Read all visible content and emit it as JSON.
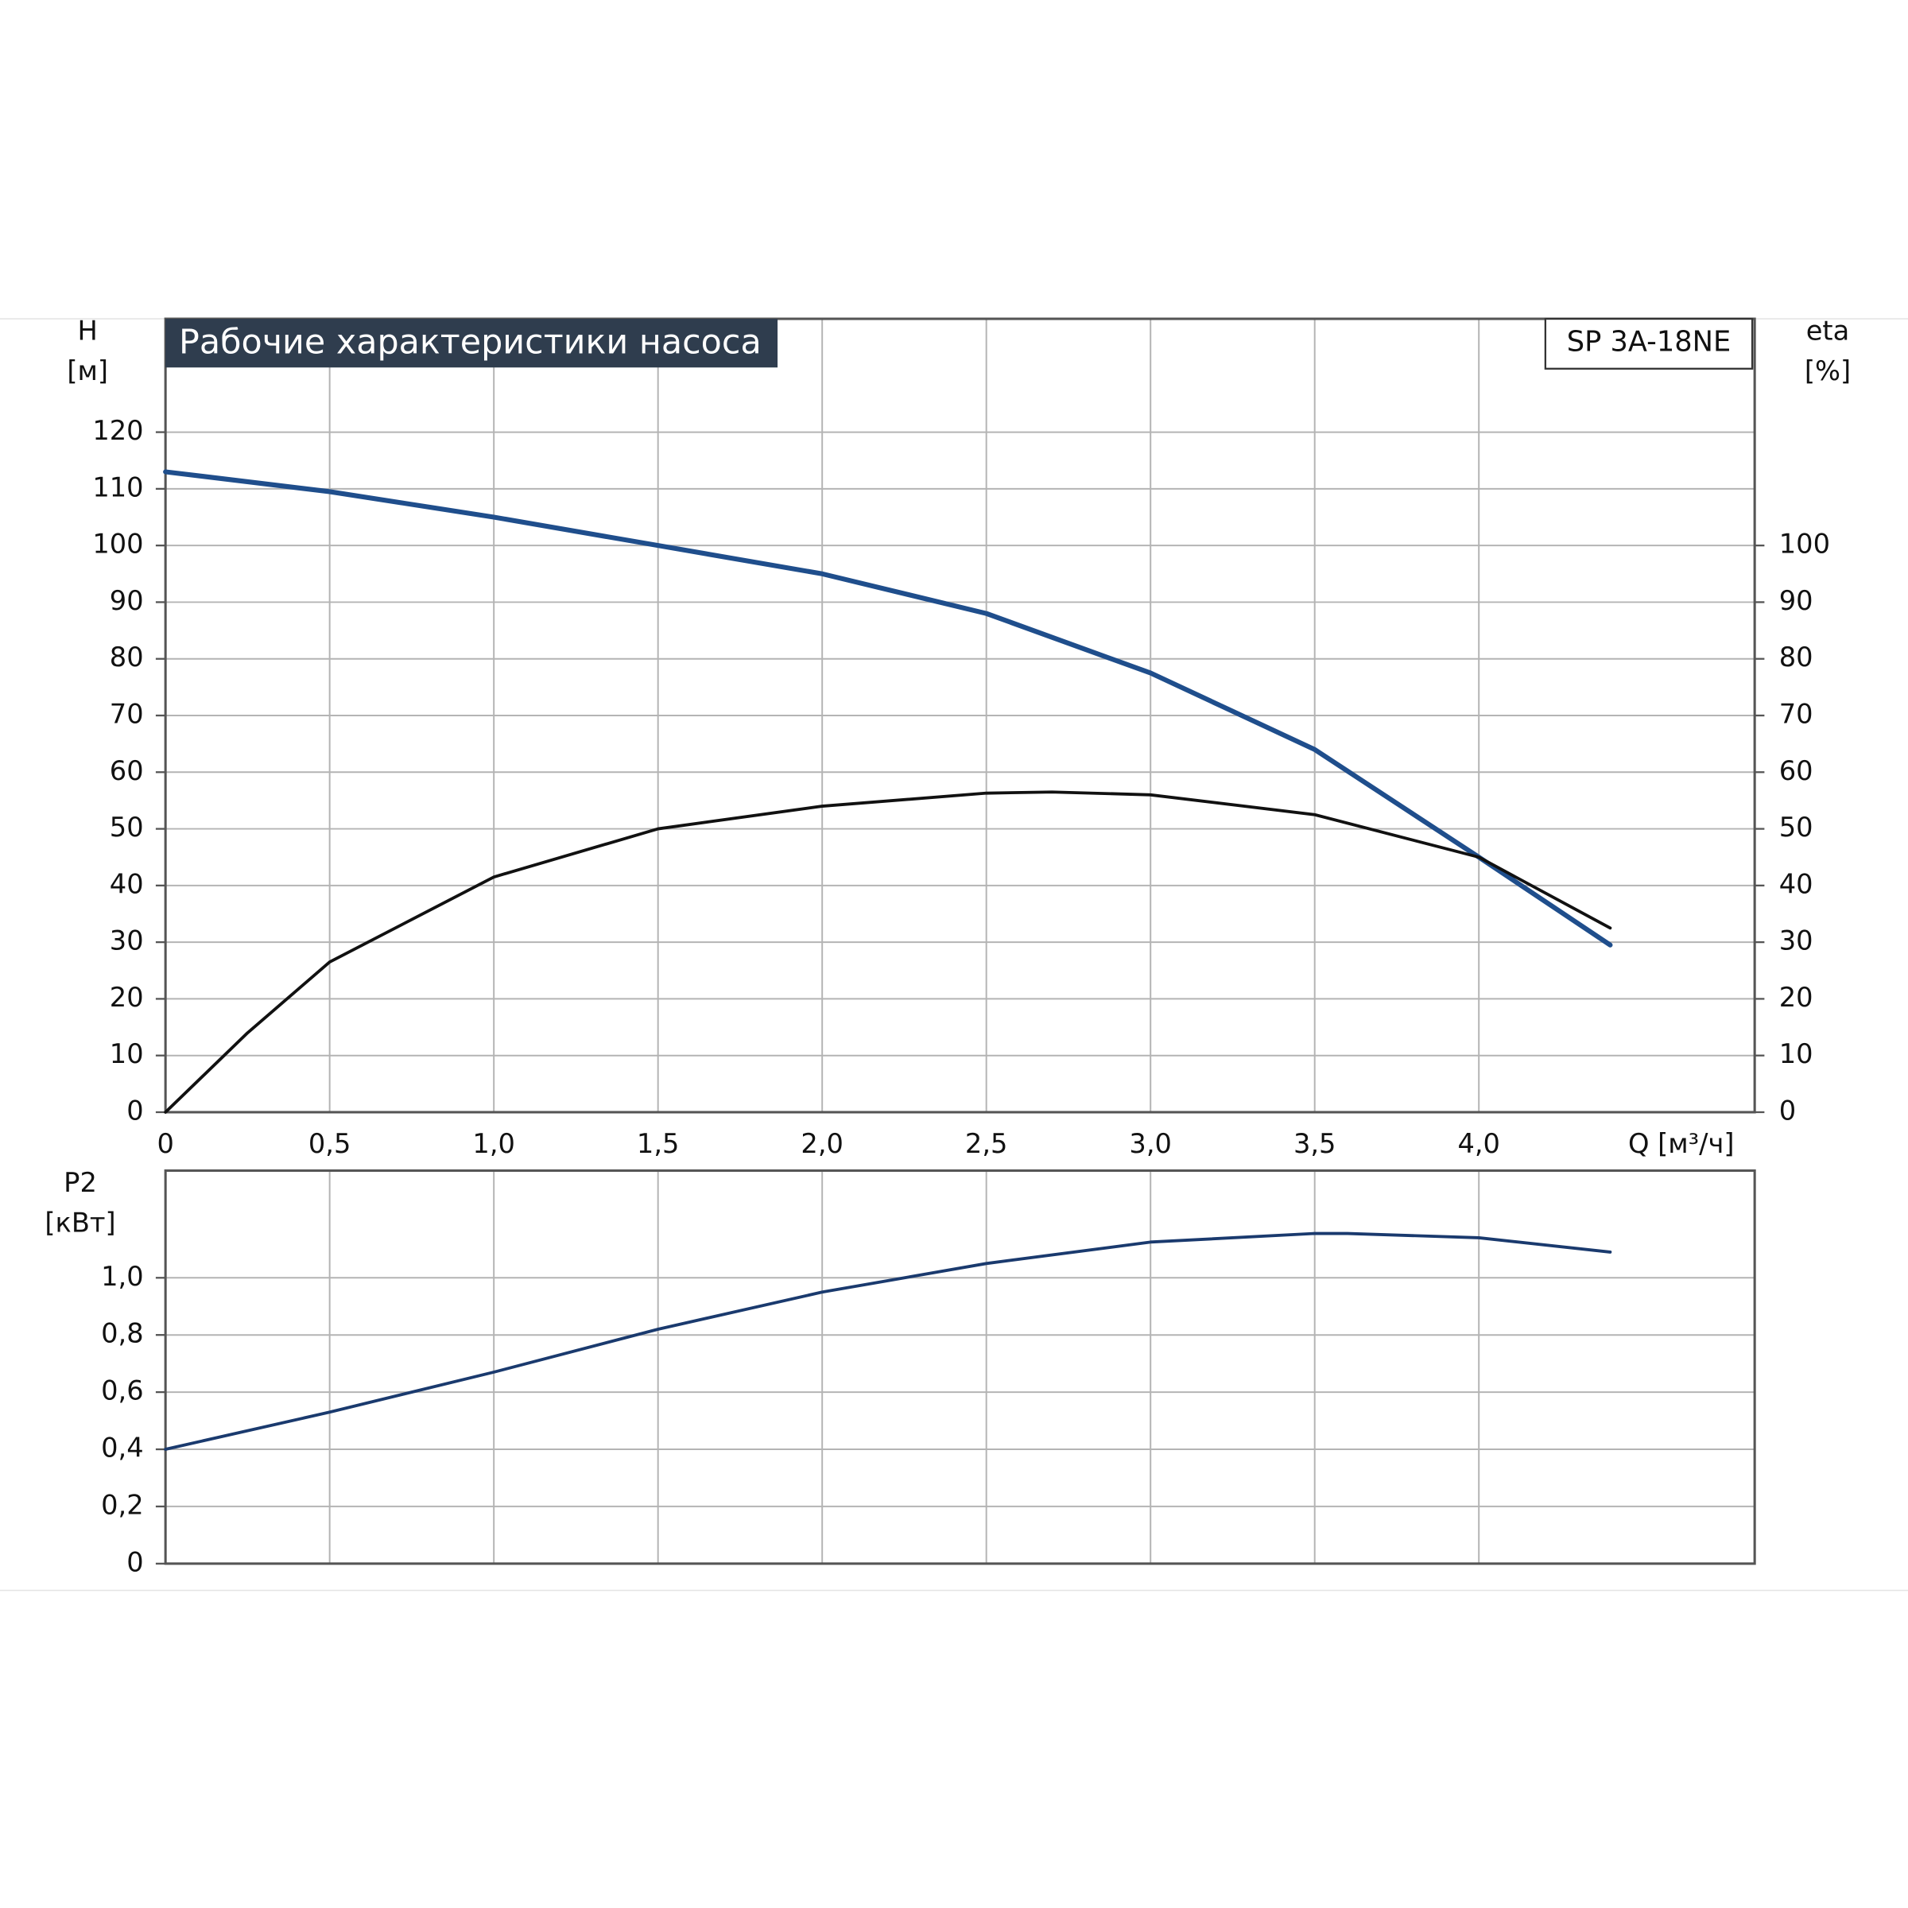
{
  "chart_data": [
    {
      "type": "line",
      "title": "Рабочие характеристики насоса",
      "model": "SP 3A-18NE",
      "y_unit": "[м]",
      "y2_unit": "[%]",
      "x_label": "Q [м³/ч]",
      "xlim": [
        0,
        4.84
      ],
      "xticks": [
        0,
        {
          "value": 0.5,
          "label": "0,5"
        },
        {
          "value": 1.0,
          "label": "1,0"
        },
        {
          "value": 1.5,
          "label": "1,5"
        },
        {
          "value": 2.0,
          "label": "2,0"
        },
        {
          "value": 2.5,
          "label": "2,5"
        },
        {
          "value": 3.0,
          "label": "3,0"
        },
        {
          "value": 3.5,
          "label": "3,5"
        },
        {
          "value": 4.0,
          "label": "4,0"
        }
      ],
      "ylim": [
        0,
        140
      ],
      "yticks": [
        0,
        10,
        20,
        30,
        40,
        50,
        60,
        70,
        80,
        90,
        100,
        110,
        120
      ],
      "y2lim": [
        0,
        140
      ],
      "y2ticks": [
        0,
        10,
        20,
        30,
        40,
        50,
        60,
        70,
        80,
        90,
        100
      ],
      "grid": true,
      "series": [
        {
          "name": "H",
          "color": "#1f4e8c",
          "x": [
            0,
            0.5,
            1.0,
            1.5,
            2.0,
            2.5,
            3.0,
            3.5,
            4.0,
            4.4
          ],
          "values": [
            113,
            109.5,
            105,
            100,
            95,
            88,
            77.5,
            64,
            45,
            29.5
          ]
        },
        {
          "name": "eta",
          "color": "#111111",
          "axis": "y2",
          "x": [
            0,
            0.25,
            0.5,
            1.0,
            1.5,
            2.0,
            2.5,
            2.7,
            3.0,
            3.5,
            4.0,
            4.4
          ],
          "values": [
            0,
            14,
            26.5,
            41.5,
            50,
            54,
            56.3,
            56.5,
            56,
            52.5,
            45,
            32.5
          ]
        }
      ]
    },
    {
      "type": "line",
      "y_unit": "[кВт]",
      "xlim": [
        0,
        4.84
      ],
      "ylim": [
        0,
        1.375
      ],
      "yticks": [
        0,
        {
          "value": 0.2,
          "label": "0,2"
        },
        {
          "value": 0.4,
          "label": "0,4"
        },
        {
          "value": 0.6,
          "label": "0,6"
        },
        {
          "value": 0.8,
          "label": "0,8"
        },
        {
          "value": 1.0,
          "label": "1,0"
        }
      ],
      "grid": true,
      "series": [
        {
          "name": "P2",
          "color": "#1a3a6e",
          "x": [
            0,
            0.5,
            1.0,
            1.5,
            2.0,
            2.5,
            3.0,
            3.5,
            3.6,
            4.0,
            4.4
          ],
          "values": [
            0.4,
            0.53,
            0.67,
            0.82,
            0.95,
            1.05,
            1.125,
            1.155,
            1.155,
            1.14,
            1.09
          ]
        }
      ]
    }
  ]
}
